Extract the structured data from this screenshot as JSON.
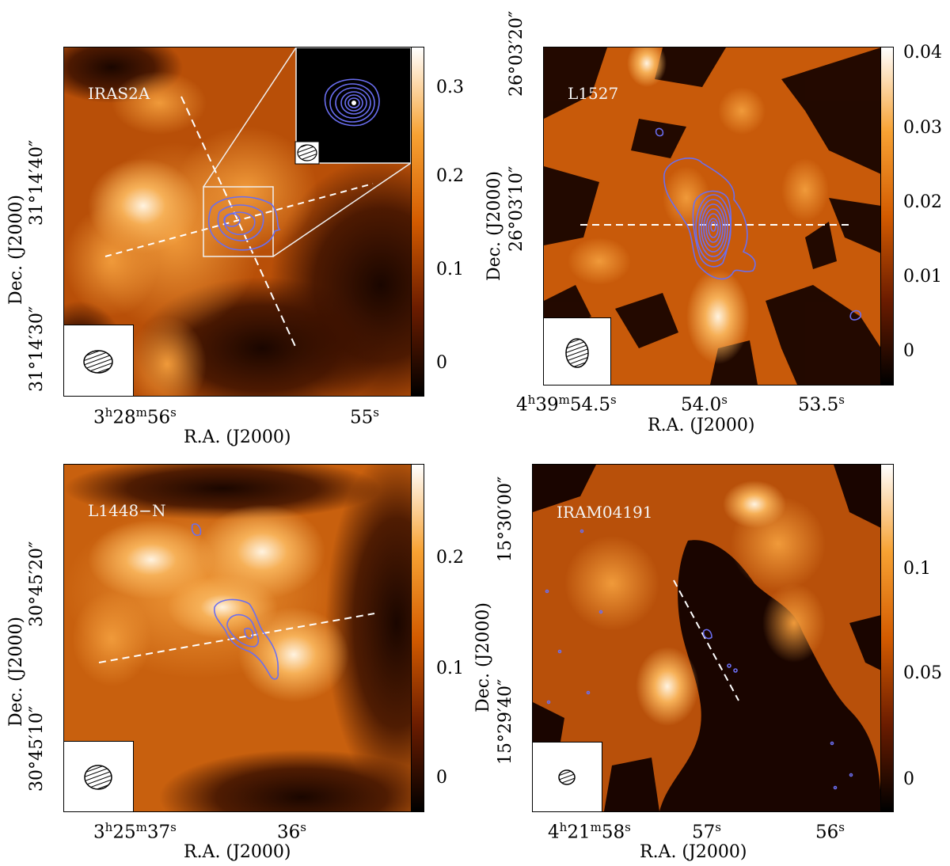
{
  "panels": [
    {
      "source": "IRAS2A",
      "ra_ticks": [
        {
          "h": "3",
          "hs": "h",
          "m": "28",
          "ms": "m",
          "s": "56",
          "ss": "s"
        },
        {
          "s": "55",
          "ss": "s"
        }
      ],
      "dec_ticks": [
        "31°14′40″",
        "31°14′30″"
      ],
      "colorbar_ticks": [
        "0.3",
        "0.2",
        "0.1",
        "0"
      ],
      "xlabel": "R.A. (J2000)",
      "ylabel": "Dec. (J2000)"
    },
    {
      "source": "L1527",
      "ra_ticks": [
        {
          "h": "4",
          "hs": "h",
          "m": "39",
          "ms": "m",
          "s": "54.5",
          "ss": "s"
        },
        {
          "s": "54.0",
          "ss": "s"
        },
        {
          "s": "53.5",
          "ss": "s"
        }
      ],
      "dec_ticks": [
        "26°03′20″",
        "26°03′10″"
      ],
      "colorbar_ticks": [
        "0.04",
        "0.03",
        "0.02",
        "0.01",
        "0"
      ],
      "xlabel": "R.A. (J2000)",
      "ylabel": "Dec. (J2000)"
    },
    {
      "source": "L1448−N",
      "ra_ticks": [
        {
          "h": "3",
          "hs": "h",
          "m": "25",
          "ms": "m",
          "s": "37",
          "ss": "s"
        },
        {
          "s": "36",
          "ss": "s"
        }
      ],
      "dec_ticks": [
        "30°45′20″",
        "30°45′10″"
      ],
      "colorbar_ticks": [
        "0.2",
        "0.1",
        "0"
      ],
      "xlabel": "R.A. (J2000)",
      "ylabel": "Dec. (J2000)"
    },
    {
      "source": "IRAM04191",
      "ra_ticks": [
        {
          "h": "4",
          "hs": "h",
          "m": "21",
          "ms": "m",
          "s": "58",
          "ss": "s"
        },
        {
          "s": "57",
          "ss": "s"
        },
        {
          "s": "56",
          "ss": "s"
        }
      ],
      "dec_ticks": [
        "15°30′00″",
        "15°29′40″"
      ],
      "colorbar_ticks": [
        "0.1",
        "0.05",
        "0"
      ],
      "xlabel": "R.A. (J2000)",
      "ylabel": "Dec. (J2000)"
    }
  ],
  "colors": {
    "map_dark": "#1a0500",
    "map_mid": "#d9730d",
    "map_bright": "#fff1dd",
    "contour": "#6a6ef0",
    "label": "#f4f4f4"
  }
}
